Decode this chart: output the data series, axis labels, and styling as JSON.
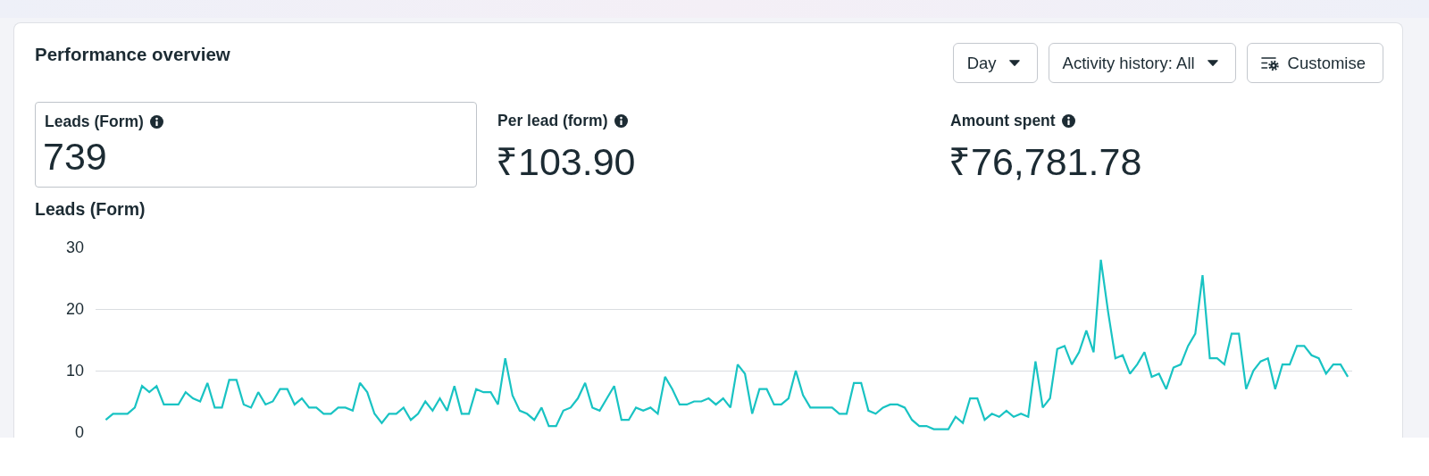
{
  "chart_data": [
    {
      "type": "other",
      "title": "Performance overview",
      "annotations": [
        "Day",
        "Activity history: All",
        "Customise",
        "Leads (Form)",
        "739",
        "Per lead (form)",
        "₹103.90",
        "Amount spent",
        "₹76,781.78"
      ]
    },
    {
      "type": "line",
      "title": "Leads (Form)",
      "categories": [
        null,
        null,
        null,
        null,
        null,
        null,
        null,
        null,
        null,
        null,
        null,
        null,
        null,
        null,
        null,
        null,
        null,
        null,
        null,
        null,
        null,
        null,
        null,
        null,
        null,
        null,
        null,
        null,
        null,
        null,
        null,
        null,
        null,
        null,
        null,
        null,
        null,
        null,
        null,
        null,
        null,
        null,
        null,
        null,
        null,
        null,
        null,
        null,
        null,
        null,
        null,
        null,
        null,
        null,
        null,
        null,
        null,
        null,
        null,
        null,
        null,
        null,
        null,
        null,
        null,
        null,
        null,
        null,
        null,
        null,
        null,
        null,
        null,
        null,
        null,
        null,
        null,
        null,
        null,
        null,
        null,
        null,
        null,
        null,
        null,
        null,
        null,
        null,
        null,
        null,
        null,
        null,
        null,
        null,
        null,
        null,
        null,
        null,
        null,
        null,
        null,
        null,
        null,
        null,
        null,
        null,
        null,
        null,
        null,
        null,
        null,
        null,
        null,
        null,
        null,
        null,
        null,
        null,
        null,
        null,
        null,
        null,
        null,
        null,
        null,
        null,
        null,
        null,
        null,
        null,
        null,
        null,
        null,
        null,
        null,
        null,
        null,
        null,
        null,
        null,
        null,
        null,
        null,
        null,
        null,
        null,
        null,
        null,
        null,
        null,
        null,
        null,
        null,
        null,
        null,
        null,
        null,
        null,
        null,
        null,
        null,
        null,
        null,
        null,
        null,
        null,
        null,
        null,
        null,
        null,
        null,
        null
      ],
      "values": [
        2,
        3,
        3,
        3,
        4,
        7.5,
        6.5,
        7.5,
        4.5,
        4.5,
        4.5,
        6.5,
        5.5,
        5,
        8,
        4,
        4,
        8.5,
        8.5,
        4.5,
        4,
        6.5,
        4.5,
        5,
        7,
        7,
        4.5,
        5.5,
        4,
        4,
        3,
        3,
        4,
        4,
        3.5,
        8,
        6.5,
        3,
        1.5,
        3,
        3,
        4,
        2,
        3,
        5,
        3.5,
        5.5,
        3.5,
        7.5,
        3,
        3,
        7,
        6.5,
        6.5,
        4.5,
        12,
        6,
        3.5,
        3,
        2,
        4,
        1,
        1,
        3.5,
        4,
        5.5,
        8,
        4,
        3.5,
        5.5,
        7.5,
        2,
        2,
        4,
        3.5,
        4,
        3,
        9,
        7,
        4.5,
        4.5,
        5,
        5,
        5.5,
        4.5,
        5.5,
        4,
        11,
        9.5,
        3,
        7,
        7,
        4.5,
        4.5,
        5.5,
        10,
        6,
        4,
        4,
        null,
        4,
        3,
        3,
        8,
        8,
        3.5,
        3,
        4,
        4.5,
        4.5,
        4,
        2,
        1,
        1,
        0.5,
        0.5,
        0.5,
        2.5,
        1.5,
        5.5,
        5.5,
        2,
        3,
        2.5,
        3.5,
        2.5,
        3,
        2.5,
        11.5,
        4,
        5.5,
        13.5,
        14,
        11,
        13,
        16.5,
        13,
        28,
        19.5,
        12,
        12.5,
        9.5,
        11,
        13,
        9,
        9.5,
        7,
        10.5,
        11,
        14,
        16,
        25.5,
        12,
        12,
        11,
        16,
        16,
        7,
        10,
        11.5,
        12,
        7,
        11,
        11,
        14,
        14,
        12.5,
        12,
        9.5,
        11,
        11,
        9
      ],
      "color": "#19c3c3",
      "ylim": [
        0,
        30
      ],
      "yticks": [
        0,
        10,
        20,
        30
      ],
      "grid": "y"
    }
  ]
}
